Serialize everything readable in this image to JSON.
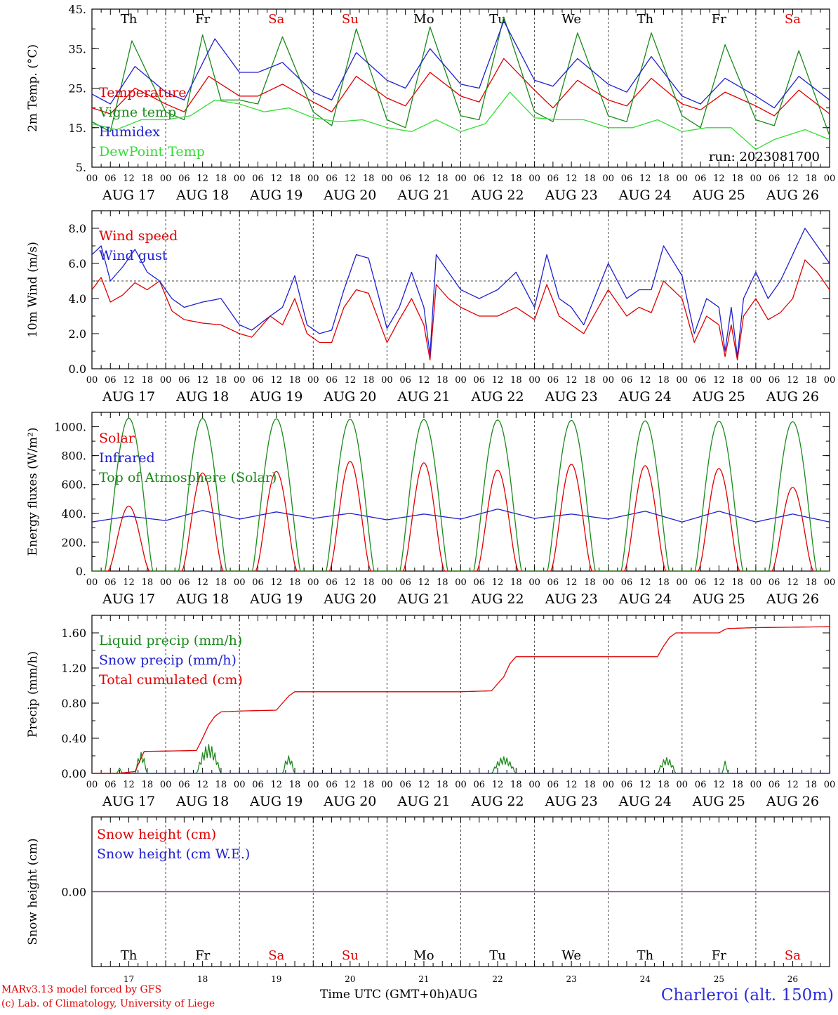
{
  "meta": {
    "run_label": "run: 2023081700",
    "credit_line1": "MARv3.13 model forced by GFS",
    "credit_line2": "(c) Lab. of Climatology, University of Liege",
    "x_axis_title": "Time UTC (GMT+0h)AUG",
    "station": "Charleroi (alt. 150m)"
  },
  "time_axis": {
    "hour_ticks": [
      "00",
      "06",
      "12",
      "18"
    ],
    "final_hour": "00",
    "dates": [
      "AUG 17",
      "AUG 18",
      "AUG 19",
      "AUG 20",
      "AUG 21",
      "AUG 22",
      "AUG 23",
      "AUG 24",
      "AUG 25",
      "AUG 26"
    ],
    "weekdays": [
      "Th",
      "Fr",
      "Sa",
      "Su",
      "Mo",
      "Tu",
      "We",
      "Th",
      "Fr",
      "Sa"
    ],
    "weekday_colors": [
      "#000000",
      "#000000",
      "#e00000",
      "#e00000",
      "#000000",
      "#000000",
      "#000000",
      "#000000",
      "#000000",
      "#e00000"
    ],
    "day_numbers": [
      "17",
      "18",
      "19",
      "20",
      "21",
      "22",
      "23",
      "24",
      "25",
      "26"
    ]
  },
  "chart_data": [
    {
      "type": "line",
      "ylabel": "2m Temp. (°C)",
      "ylim": [
        5,
        45
      ],
      "yticks": [
        5,
        15,
        25,
        35,
        45
      ],
      "ytick_labels": [
        "5.",
        "15.",
        "25.",
        "35.",
        "45."
      ],
      "x_unit": "hours since AUG 17 00 UTC",
      "xlim": [
        0,
        240
      ],
      "series": [
        {
          "name": "Temperature",
          "color": "#e00000",
          "x": [
            0,
            6,
            14,
            24,
            30,
            38,
            48,
            54,
            62,
            72,
            78,
            86,
            96,
            102,
            110,
            120,
            126,
            134,
            144,
            150,
            158,
            168,
            174,
            182,
            192,
            198,
            206,
            216,
            222,
            230,
            240
          ],
          "values": [
            20,
            18.5,
            25,
            21,
            19,
            28,
            23,
            23,
            26,
            21.5,
            19,
            28,
            22.5,
            20.5,
            29,
            23,
            21.5,
            32.5,
            24.5,
            20,
            27,
            22,
            20.5,
            27.5,
            21,
            19.5,
            24,
            20.5,
            18,
            24.5,
            18.5
          ]
        },
        {
          "name": "Vigne temp",
          "color": "#1a8a1a",
          "x": [
            0,
            6,
            13,
            24,
            30,
            36,
            42,
            48,
            54,
            62,
            72,
            78,
            86,
            96,
            102,
            110,
            120,
            126,
            134,
            144,
            150,
            158,
            168,
            174,
            182,
            192,
            198,
            206,
            216,
            222,
            230,
            240
          ],
          "values": [
            16.5,
            14,
            37,
            19,
            17,
            38.5,
            22,
            22,
            21,
            38,
            19,
            15.5,
            40,
            17,
            15,
            40.5,
            18,
            17,
            43,
            19,
            16.5,
            39,
            18,
            16.5,
            39,
            18,
            15,
            36,
            17,
            15.5,
            34.5,
            13
          ]
        },
        {
          "name": "Humidex",
          "color": "#2020d0",
          "x": [
            0,
            6,
            14,
            24,
            30,
            40,
            48,
            54,
            62,
            72,
            78,
            86,
            96,
            102,
            110,
            120,
            126,
            134,
            144,
            150,
            158,
            168,
            174,
            182,
            192,
            198,
            206,
            216,
            222,
            230,
            240
          ],
          "values": [
            23.5,
            21,
            30.5,
            24,
            22,
            37.5,
            29,
            29,
            31.5,
            24,
            22,
            34,
            27,
            25,
            35,
            26,
            25,
            42,
            27,
            25.5,
            32.5,
            26,
            24,
            33,
            23,
            21,
            27.5,
            23,
            20,
            28,
            22
          ]
        },
        {
          "name": "DewPoint Temp",
          "color": "#33dd33",
          "x": [
            0,
            8,
            16,
            24,
            32,
            40,
            48,
            56,
            64,
            72,
            80,
            88,
            96,
            104,
            112,
            120,
            128,
            136,
            144,
            152,
            160,
            168,
            176,
            184,
            192,
            200,
            208,
            216,
            222,
            232,
            240
          ],
          "values": [
            16,
            14.5,
            17,
            17,
            18,
            22,
            21,
            19,
            20,
            17.5,
            16.5,
            17,
            15,
            14,
            17,
            14,
            16,
            24,
            17.5,
            17,
            17,
            15,
            15,
            17,
            14,
            15,
            15,
            9.5,
            12,
            14.5,
            12
          ]
        }
      ]
    },
    {
      "type": "line",
      "ylabel": "10m Wind (m/s)",
      "ylim": [
        0,
        9
      ],
      "yticks": [
        0,
        2,
        4,
        6,
        8
      ],
      "ytick_labels": [
        "0.0",
        "2.0",
        "4.0",
        "6.0",
        "8.0"
      ],
      "reference_line": 5,
      "x_unit": "hours since AUG 17 00 UTC",
      "xlim": [
        0,
        240
      ],
      "series": [
        {
          "name": "Wind speed",
          "color": "#e00000",
          "x": [
            0,
            3,
            6,
            10,
            14,
            18,
            22,
            26,
            30,
            36,
            42,
            48,
            52,
            58,
            62,
            66,
            70,
            74,
            78,
            82,
            86,
            90,
            96,
            100,
            104,
            108,
            110,
            112,
            116,
            120,
            126,
            132,
            138,
            144,
            148,
            152,
            156,
            160,
            168,
            174,
            178,
            182,
            186,
            192,
            196,
            200,
            204,
            206,
            208,
            210,
            212,
            216,
            220,
            224,
            228,
            232,
            236,
            240
          ],
          "values": [
            4.5,
            5.2,
            3.8,
            4.2,
            4.9,
            4.5,
            5.0,
            3.3,
            2.8,
            2.6,
            2.5,
            2.0,
            1.8,
            3.0,
            2.5,
            4.0,
            2.0,
            1.5,
            1.5,
            3.5,
            4.5,
            4.3,
            1.5,
            2.8,
            4.0,
            2.5,
            0.5,
            4.8,
            4.0,
            3.5,
            3.0,
            3.0,
            3.5,
            2.8,
            4.8,
            3.0,
            2.5,
            2.0,
            4.5,
            3.0,
            3.5,
            3.2,
            5.0,
            4.0,
            1.5,
            3.0,
            2.5,
            0.7,
            2.5,
            0.5,
            3.0,
            4.0,
            2.8,
            3.2,
            4.0,
            6.2,
            5.5,
            4.5
          ]
        },
        {
          "name": "Wind gust",
          "color": "#2020d0",
          "x": [
            0,
            3,
            6,
            10,
            14,
            18,
            22,
            26,
            30,
            36,
            42,
            48,
            52,
            58,
            62,
            66,
            70,
            74,
            78,
            82,
            86,
            90,
            96,
            100,
            104,
            108,
            110,
            112,
            116,
            120,
            126,
            132,
            138,
            144,
            148,
            152,
            156,
            160,
            168,
            174,
            178,
            182,
            186,
            192,
            196,
            200,
            204,
            206,
            208,
            210,
            212,
            216,
            220,
            224,
            228,
            232,
            236,
            240
          ],
          "values": [
            6.5,
            7.0,
            5.0,
            5.8,
            6.8,
            5.5,
            5.0,
            4.0,
            3.5,
            3.8,
            4.0,
            2.5,
            2.2,
            3.0,
            3.5,
            5.3,
            2.5,
            2.0,
            2.2,
            4.5,
            6.5,
            6.3,
            2.3,
            3.5,
            5.5,
            3.5,
            0.8,
            6.5,
            5.5,
            4.5,
            4.0,
            4.5,
            5.5,
            3.5,
            6.5,
            4.0,
            3.5,
            2.5,
            6.0,
            4.0,
            4.5,
            4.5,
            7.0,
            5.3,
            2.0,
            4.0,
            3.5,
            1.0,
            3.5,
            0.7,
            4.0,
            5.5,
            4.0,
            5.0,
            6.5,
            8.0,
            7.0,
            6.0
          ]
        }
      ]
    },
    {
      "type": "line",
      "ylabel": "Energy fluxes (W/m²)",
      "ylim": [
        0,
        1100
      ],
      "yticks": [
        0,
        200,
        400,
        600,
        800,
        1000
      ],
      "ytick_labels": [
        "0.",
        "200.",
        "400.",
        "600.",
        "800.",
        "1000."
      ],
      "x_unit": "hours since AUG 17 00 UTC",
      "xlim": [
        0,
        240
      ],
      "series": [
        {
          "name": "Solar",
          "color": "#e00000",
          "daily_peaks": [
            450,
            680,
            690,
            760,
            750,
            700,
            740,
            730,
            710,
            580
          ],
          "note_shape": "daytime bell between 05 and 19 UTC"
        },
        {
          "name": "Infrared",
          "color": "#2020d0",
          "x": [
            0,
            12,
            24,
            36,
            48,
            60,
            72,
            84,
            96,
            108,
            120,
            132,
            144,
            156,
            168,
            180,
            192,
            204,
            216,
            228,
            240
          ],
          "values": [
            340,
            380,
            350,
            420,
            360,
            410,
            365,
            400,
            355,
            395,
            360,
            430,
            365,
            395,
            360,
            415,
            340,
            415,
            340,
            395,
            340
          ]
        },
        {
          "name": "Top of Atmosphere (Solar)",
          "color": "#1a8a1a",
          "daily_peaks": [
            1060,
            1058,
            1055,
            1052,
            1050,
            1047,
            1044,
            1041,
            1038,
            1035
          ],
          "note_shape": "daytime bell between 04 and 20 UTC"
        }
      ]
    },
    {
      "type": "line",
      "ylabel": "Precip (mm/h)",
      "ylim": [
        0,
        1.8
      ],
      "yticks": [
        0,
        0.4,
        0.8,
        1.2,
        1.6
      ],
      "ytick_labels": [
        "0.00",
        "0.40",
        "0.80",
        "1.20",
        "1.60"
      ],
      "x_unit": "hours since AUG 17 00 UTC",
      "xlim": [
        0,
        240
      ],
      "series": [
        {
          "name": "Liquid precip (mm/h)",
          "color": "#1a8a1a",
          "bursts": [
            {
              "x0": 8,
              "x1": 10,
              "peak": 0.06
            },
            {
              "x0": 14,
              "x1": 18,
              "peak": 0.24
            },
            {
              "x0": 34,
              "x1": 42,
              "peak": 0.33
            },
            {
              "x0": 62,
              "x1": 66,
              "peak": 0.2
            },
            {
              "x0": 130,
              "x1": 138,
              "peak": 0.19
            },
            {
              "x0": 184,
              "x1": 190,
              "peak": 0.18
            },
            {
              "x0": 205,
              "x1": 207,
              "peak": 0.14
            }
          ]
        },
        {
          "name": "Snow precip (mm/h)",
          "color": "#2020d0",
          "x": [
            0,
            240
          ],
          "values": [
            0,
            0
          ]
        },
        {
          "name": "Total cumulated (cm)",
          "color": "#e00000",
          "x": [
            0,
            8,
            14,
            17,
            34,
            36,
            38,
            40,
            42,
            48,
            60,
            62,
            64,
            66,
            72,
            96,
            120,
            130,
            134,
            136,
            138,
            144,
            168,
            184,
            186,
            188,
            190,
            196,
            204,
            206,
            207,
            216,
            240
          ],
          "values": [
            0,
            0,
            0.02,
            0.25,
            0.26,
            0.4,
            0.55,
            0.65,
            0.7,
            0.71,
            0.72,
            0.8,
            0.88,
            0.93,
            0.93,
            0.93,
            0.93,
            0.94,
            1.1,
            1.25,
            1.33,
            1.33,
            1.33,
            1.33,
            1.45,
            1.55,
            1.6,
            1.6,
            1.6,
            1.64,
            1.65,
            1.66,
            1.67
          ]
        }
      ]
    },
    {
      "type": "line",
      "ylabel": "Snow height (cm)",
      "ylim": [
        -1,
        1
      ],
      "yticks": [
        0
      ],
      "ytick_labels": [
        "0.00"
      ],
      "x_unit": "hours since AUG 17 00 UTC",
      "xlim": [
        0,
        240
      ],
      "series": [
        {
          "name": "Snow height (cm)",
          "color": "#e00000",
          "x": [
            0,
            240
          ],
          "values": [
            0,
            0
          ]
        },
        {
          "name": "Snow height (cm W.E.)",
          "color": "#2020d0",
          "x": [
            0,
            240
          ],
          "values": [
            0,
            0
          ]
        }
      ],
      "line_color": "#8030a0"
    }
  ]
}
